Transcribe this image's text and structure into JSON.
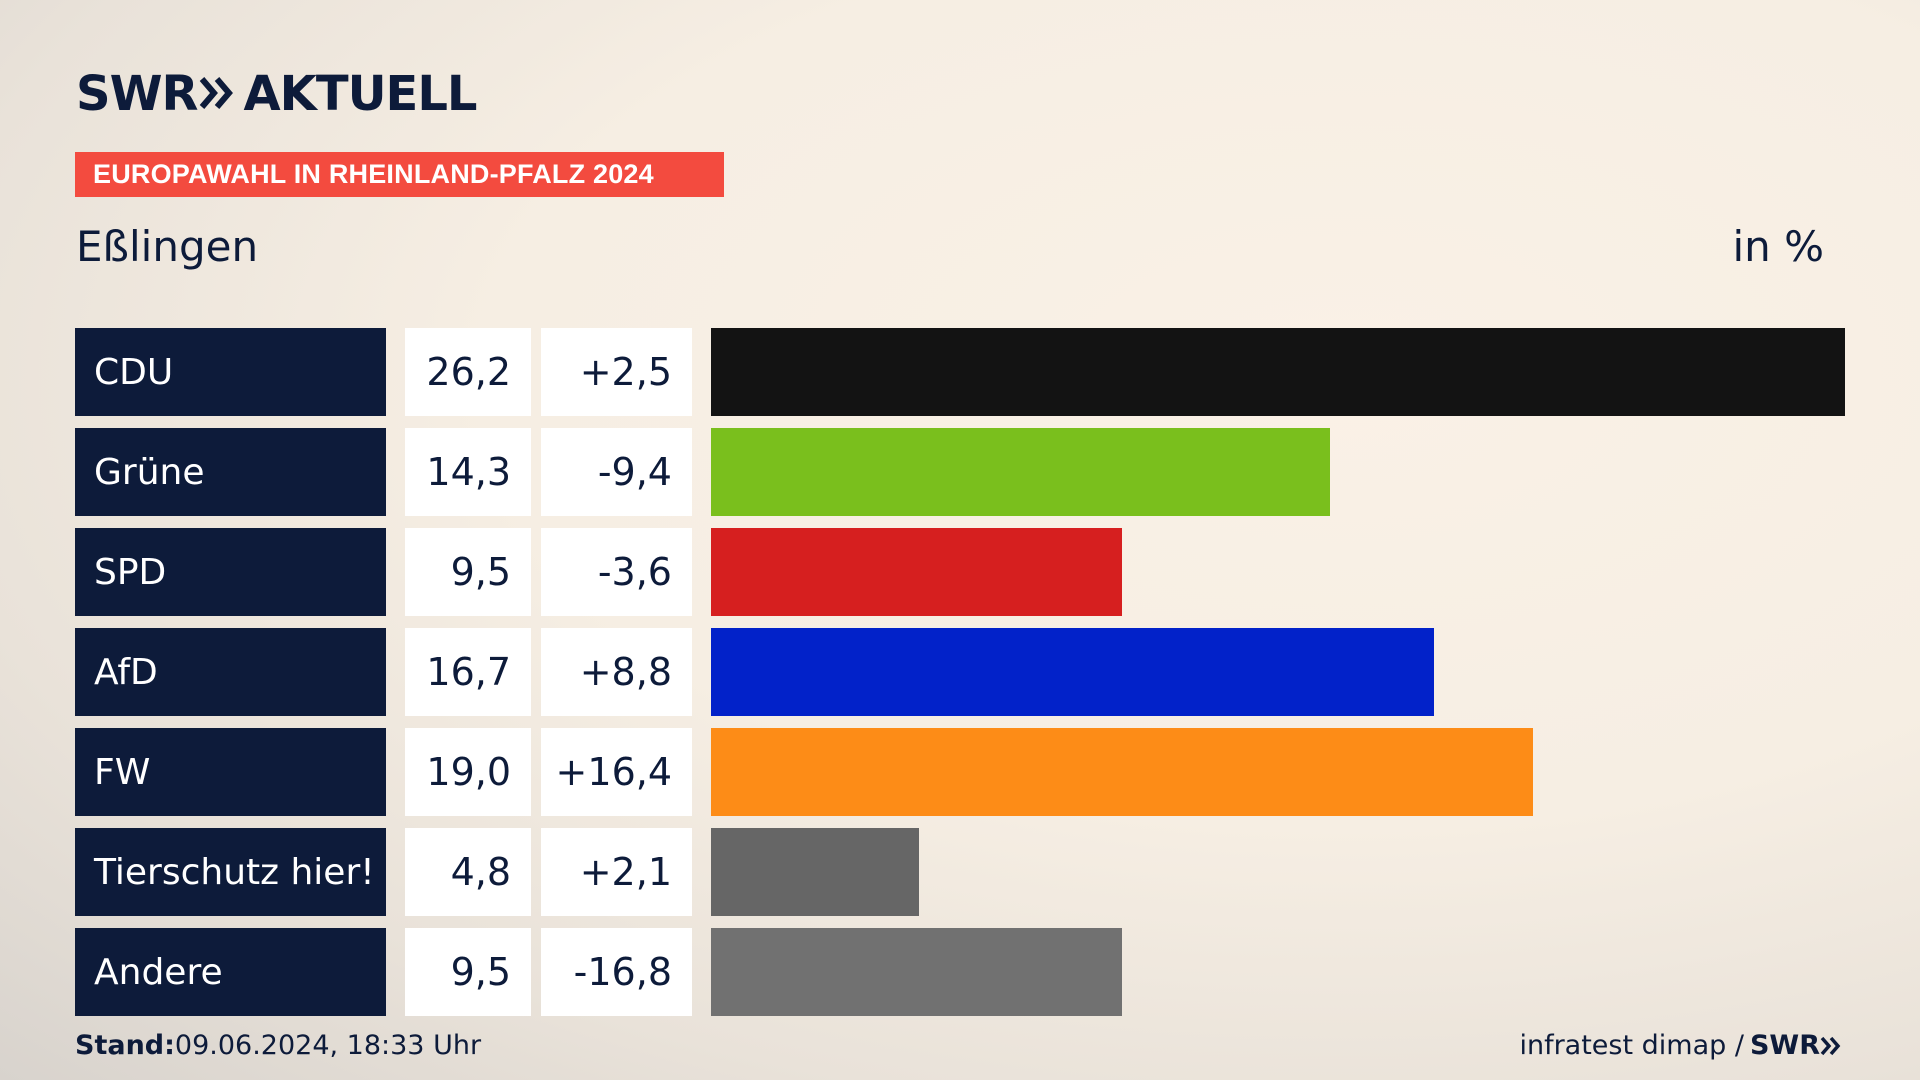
{
  "brand": {
    "logo_left": "SWR",
    "logo_right": "AKTUELL"
  },
  "banner": "EUROPAWAHL IN RHEINLAND-PFALZ 2024",
  "region": "Eßlingen",
  "unit": "in %",
  "colors": {
    "navy": "#0d1b3a",
    "banner": "#f34b3f"
  },
  "chart_data": {
    "type": "bar",
    "orientation": "horizontal",
    "title": "Eßlingen",
    "unit": "in %",
    "max": 26.2,
    "rows": [
      {
        "party": "CDU",
        "value": 26.2,
        "value_label": "26,2",
        "change_label": "+2,5",
        "color": "#131313"
      },
      {
        "party": "Grüne",
        "value": 14.3,
        "value_label": "14,3",
        "change_label": "-9,4",
        "color": "#7abf1d"
      },
      {
        "party": "SPD",
        "value": 9.5,
        "value_label": "9,5",
        "change_label": "-3,6",
        "color": "#d61f1f"
      },
      {
        "party": "AfD",
        "value": 16.7,
        "value_label": "16,7",
        "change_label": "+8,8",
        "color": "#0222c9"
      },
      {
        "party": "FW",
        "value": 19.0,
        "value_label": "19,0",
        "change_label": "+16,4",
        "color": "#fd8c17"
      },
      {
        "party": "Tierschutz hier!",
        "value": 4.8,
        "value_label": "4,8",
        "change_label": "+2,1",
        "color": "#666666"
      },
      {
        "party": "Andere",
        "value": 9.5,
        "value_label": "9,5",
        "change_label": "-16,8",
        "color": "#717171"
      }
    ]
  },
  "footer": {
    "stand_label": "Stand:",
    "stand_value": "09.06.2024, 18:33 Uhr",
    "source": "infratest dimap /",
    "source_brand": "SWR"
  }
}
